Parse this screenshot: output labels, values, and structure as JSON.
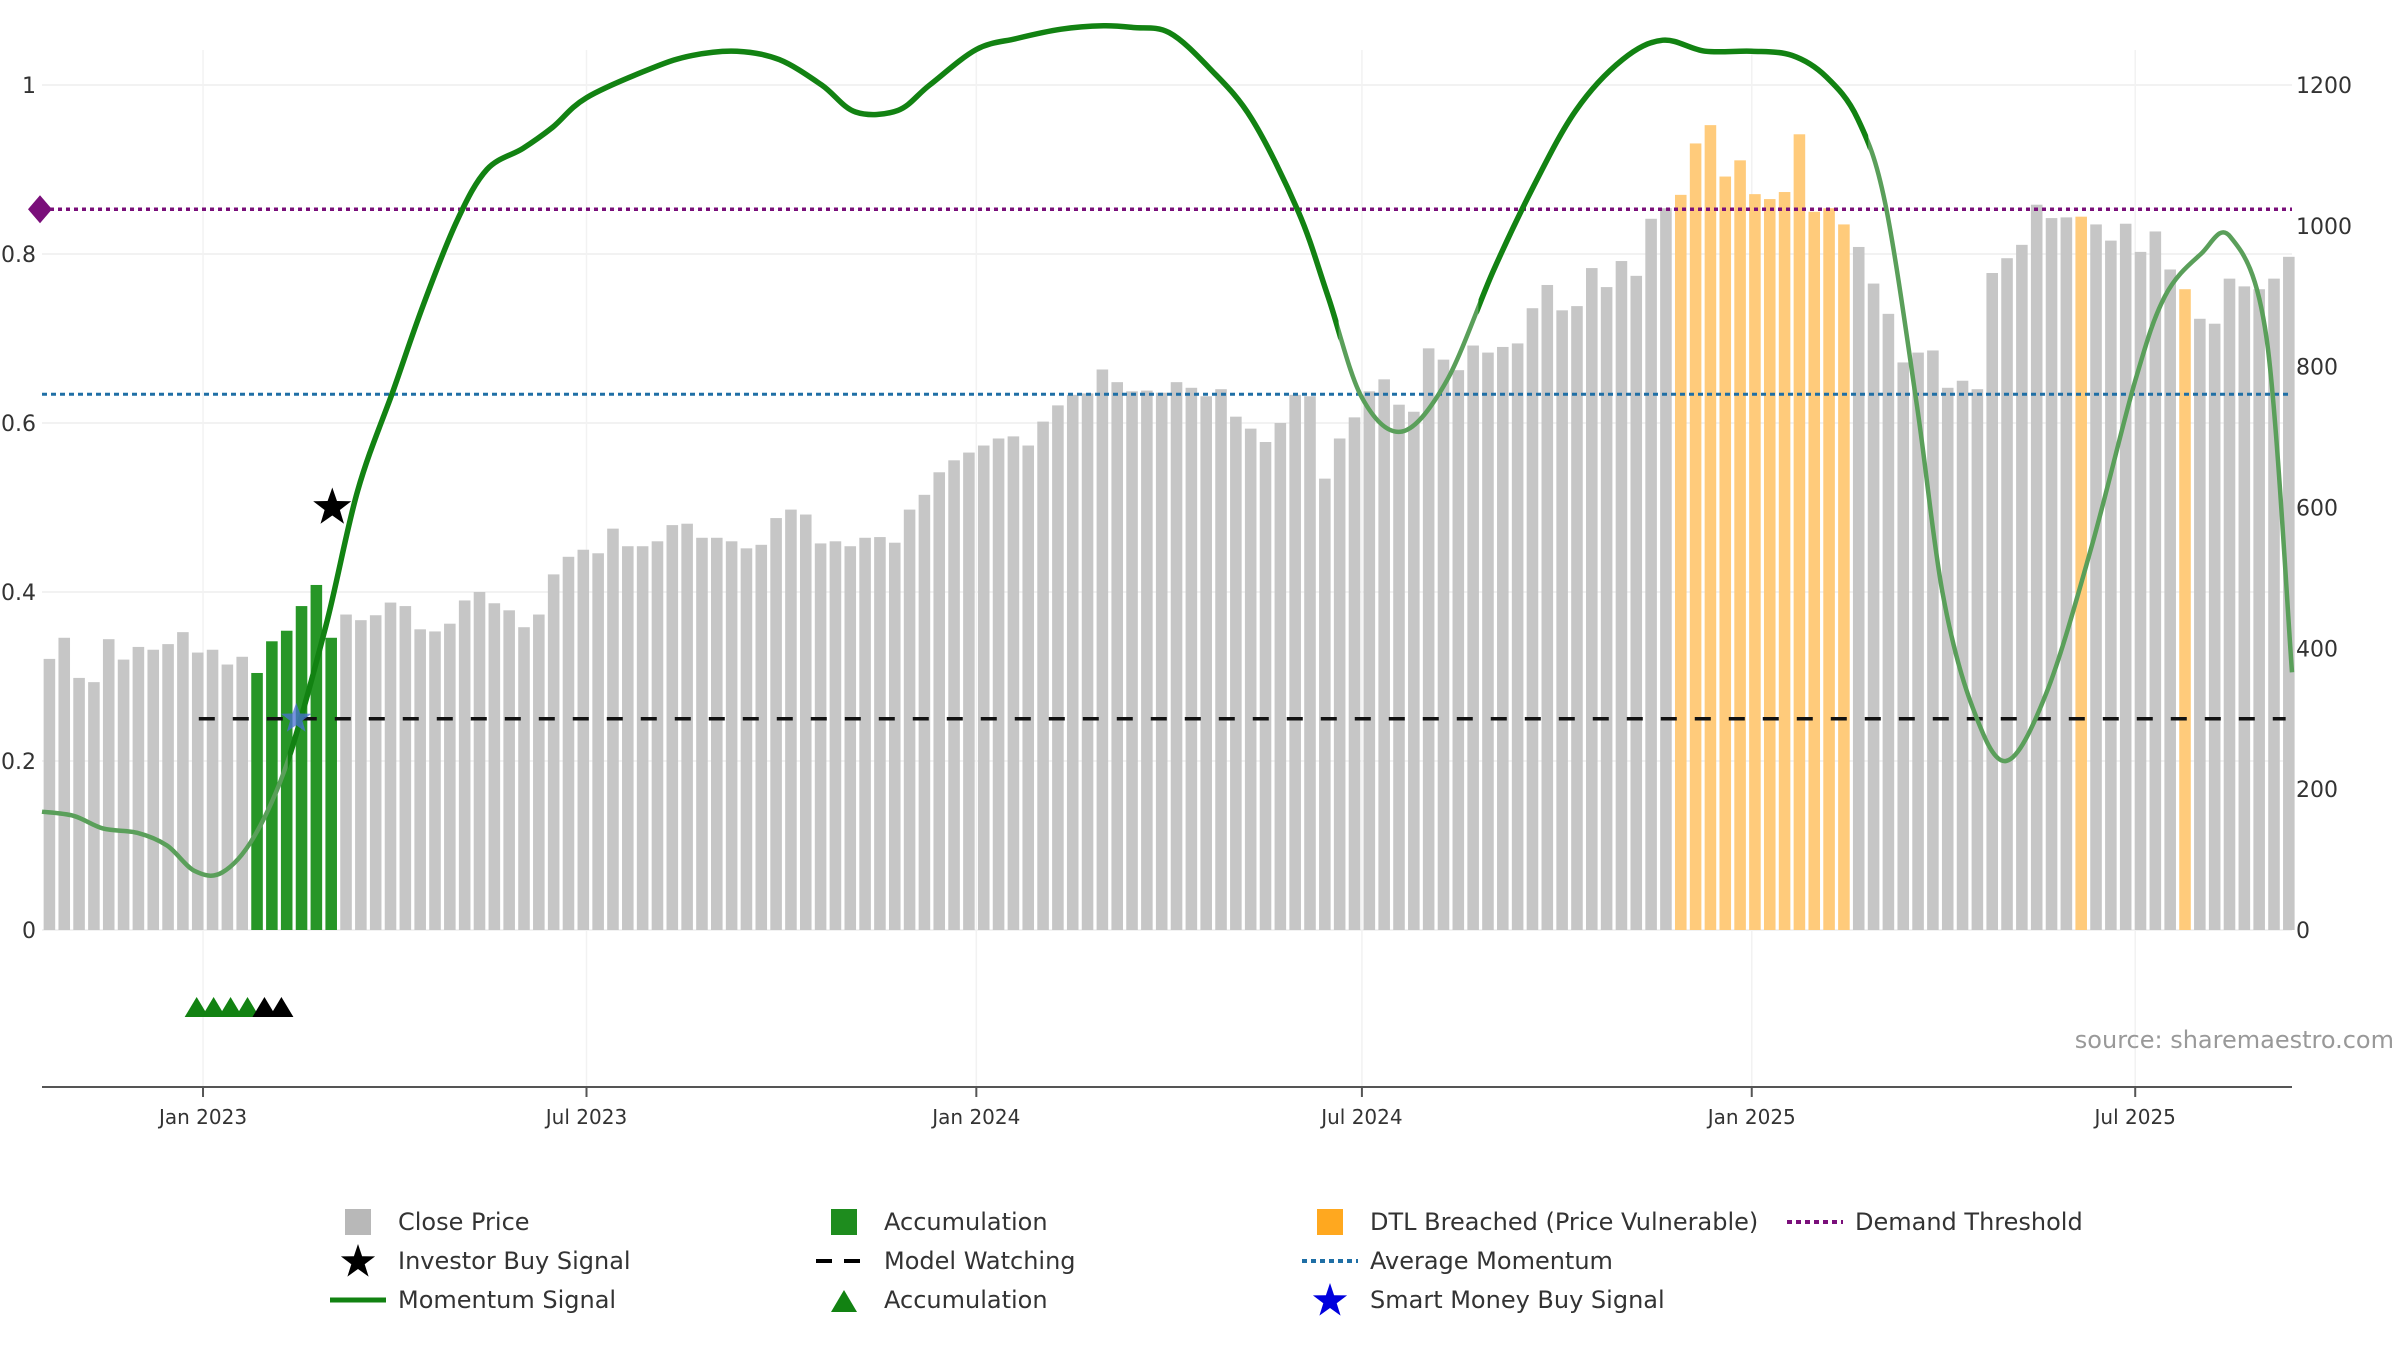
{
  "chart_data": {
    "type": "bar+line",
    "title": "",
    "source": "source: sharemaestro.com",
    "left_axis": {
      "ticks": [
        0,
        0.2,
        0.4,
        0.6,
        0.8,
        1
      ],
      "tick_labels": [
        "0",
        "0.2",
        "0.4",
        "0.6",
        "0.8",
        "1"
      ],
      "range": [
        0,
        1
      ]
    },
    "right_axis": {
      "ticks": [
        0,
        200,
        400,
        600,
        800,
        1000,
        1200
      ],
      "tick_labels": [
        "0",
        "200",
        "400",
        "600",
        "800",
        "1000",
        "1200"
      ],
      "range": [
        0,
        1200
      ]
    },
    "x_axis": {
      "start": "2022-10-17",
      "end": "2025-09-13",
      "ticks": [
        "2023-01-01",
        "2023-07-01",
        "2024-01-01",
        "2024-07-01",
        "2025-01-01",
        "2025-07-01"
      ],
      "tick_labels": [
        "Jan 2023",
        "Jul 2023",
        "Jan 2024",
        "Jul 2024",
        "Jan 2025",
        "Jul 2025"
      ]
    },
    "bars": {
      "first_week": "2022-10-17",
      "values": [
        385,
        415,
        358,
        352,
        413,
        384,
        402,
        398,
        406,
        423,
        394,
        398,
        377,
        388,
        365,
        410,
        425,
        460,
        490,
        415,
        448,
        440,
        447,
        465,
        460,
        427,
        424,
        435,
        468,
        480,
        464,
        454,
        430,
        448,
        505,
        530,
        540,
        535,
        570,
        545,
        545,
        552,
        575,
        577,
        557,
        557,
        552,
        542,
        547,
        585,
        597,
        590,
        549,
        552,
        545,
        557,
        558,
        550,
        597,
        618,
        650,
        667,
        678,
        688,
        698,
        701,
        688,
        722,
        745,
        760,
        762,
        796,
        778,
        765,
        766,
        763,
        778,
        770,
        758,
        768,
        729,
        712,
        693,
        720,
        760,
        758,
        641,
        698,
        728,
        765,
        782,
        746,
        736,
        826,
        810,
        795,
        830,
        820,
        828,
        833,
        883,
        916,
        880,
        886,
        940,
        913,
        950,
        929,
        1010,
        1025,
        1044,
        1117,
        1143,
        1070,
        1093,
        1045,
        1038,
        1048,
        1130,
        1020,
        1025,
        1002,
        970,
        918,
        875,
        806,
        820,
        823,
        770,
        780,
        768,
        933,
        954,
        973,
        1030,
        1011,
        1012,
        1013,
        1002,
        979,
        1003,
        963,
        992,
        938,
        910,
        868,
        861,
        925,
        914,
        910,
        925,
        956
      ],
      "accumulation_range": [
        14,
        19
      ],
      "breached_range": [
        110,
        121
      ],
      "breached_extra": [
        137,
        144
      ]
    },
    "momentum": {
      "dates": [
        "2022-10-17",
        "2022-11-01",
        "2022-11-15",
        "2022-12-01",
        "2022-12-15",
        "2022-12-28",
        "2023-01-10",
        "2023-01-25",
        "2023-02-10",
        "2023-02-28",
        "2023-03-15",
        "2023-04-01",
        "2023-04-15",
        "2023-05-01",
        "2023-05-15",
        "2023-06-01",
        "2023-06-15",
        "2023-07-01",
        "2023-08-01",
        "2023-08-20",
        "2023-09-10",
        "2023-09-30",
        "2023-10-20",
        "2023-11-05",
        "2023-11-25",
        "2023-12-10",
        "2024-01-01",
        "2024-01-20",
        "2024-02-10",
        "2024-03-01",
        "2024-03-15",
        "2024-04-01",
        "2024-04-20",
        "2024-05-10",
        "2024-06-01",
        "2024-06-15",
        "2024-07-01",
        "2024-07-20",
        "2024-08-10",
        "2024-09-01",
        "2024-09-20",
        "2024-10-10",
        "2024-11-01",
        "2024-11-20",
        "2024-12-10",
        "2025-01-01",
        "2025-01-20",
        "2025-02-05",
        "2025-02-20",
        "2025-03-05",
        "2025-03-20",
        "2025-04-01",
        "2025-04-15",
        "2025-05-01",
        "2025-05-20",
        "2025-06-10",
        "2025-07-01",
        "2025-07-15",
        "2025-08-01",
        "2025-08-15",
        "2025-09-01",
        "2025-09-13"
      ],
      "values": [
        0.14,
        0.135,
        0.12,
        0.115,
        0.1,
        0.07,
        0.068,
        0.11,
        0.2,
        0.36,
        0.52,
        0.64,
        0.74,
        0.84,
        0.9,
        0.925,
        0.95,
        0.985,
        1.02,
        1.035,
        1.04,
        1.03,
        1.0,
        0.968,
        0.97,
        1.0,
        1.042,
        1.055,
        1.066,
        1.07,
        1.068,
        1.062,
        1.02,
        0.96,
        0.85,
        0.75,
        0.63,
        0.59,
        0.65,
        0.78,
        0.88,
        0.97,
        1.03,
        1.053,
        1.04,
        1.04,
        1.035,
        1.01,
        0.96,
        0.86,
        0.62,
        0.4,
        0.265,
        0.2,
        0.28,
        0.45,
        0.65,
        0.75,
        0.8,
        0.82,
        0.7,
        0.305
      ]
    },
    "momentum_green_segments": [
      [
        "2023-02-10",
        "2024-06-20"
      ],
      [
        "2024-08-25",
        "2025-02-25"
      ]
    ],
    "average_momentum": 0.634,
    "demand_threshold": 0.853,
    "model_watching": {
      "value": 0.25,
      "from": "2022-12-30",
      "to": "2025-09-10"
    },
    "investor_buy_signal": {
      "date": "2023-03-03",
      "value": 0.5
    },
    "smart_money_buy_signal": {
      "date": "2023-02-14",
      "value": 0.25
    },
    "accumulation_markers": {
      "green": [
        "2022-12-29",
        "2023-01-06",
        "2023-01-14",
        "2023-01-22"
      ],
      "black": [
        "2023-01-30",
        "2023-02-07"
      ]
    },
    "legend": [
      {
        "label": "Close Price",
        "symbol": "square",
        "color": "#b8b8b8"
      },
      {
        "label": "Investor Buy Signal",
        "symbol": "star",
        "color": "#000000"
      },
      {
        "label": "Momentum Signal",
        "symbol": "line",
        "color": "#128212"
      },
      {
        "label": "Accumulation",
        "symbol": "square",
        "color": "#1e8c1e"
      },
      {
        "label": "Model Watching",
        "symbol": "dash",
        "color": "#000000"
      },
      {
        "label": "Accumulation",
        "symbol": "triangle",
        "color": "#128212"
      },
      {
        "label": "DTL Breached (Price Vulnerable)",
        "symbol": "square",
        "color": "#ffa81f"
      },
      {
        "label": "Average Momentum",
        "symbol": "dot",
        "color": "#1f6fa5"
      },
      {
        "label": "Smart Money Buy Signal",
        "symbol": "star",
        "color": "#0000dd"
      },
      {
        "label": "Demand Threshold",
        "symbol": "dot",
        "color": "#7a0f7a"
      }
    ],
    "colors": {
      "bar": "#c6c6c6",
      "accumulation_bar": "#279627",
      "breached_bar": "#ffcb7b",
      "momentum_line": "#128212",
      "momentum_line_faded": "#5a9f5a",
      "average_momentum": "#1f6fa5",
      "demand_threshold": "#7a0f7a",
      "grid": "#eeeeee"
    }
  }
}
